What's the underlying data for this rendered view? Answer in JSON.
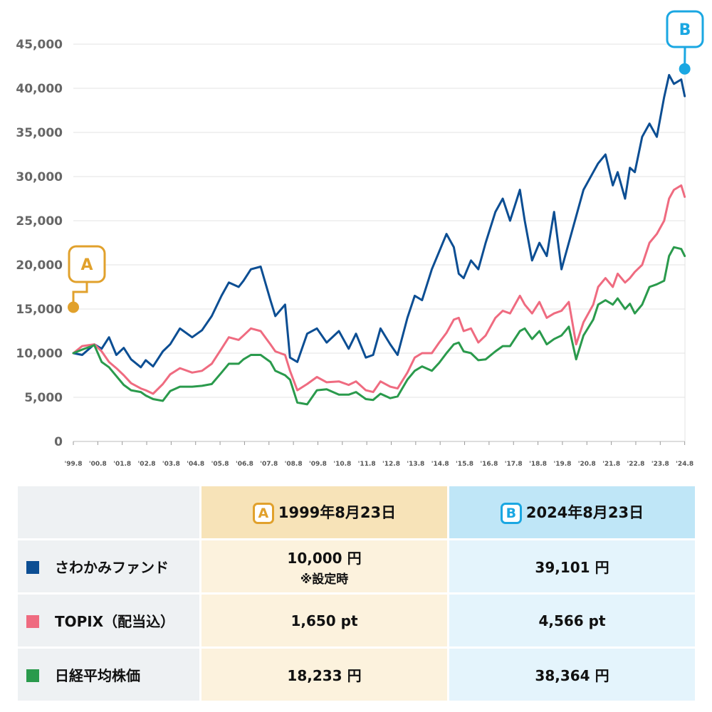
{
  "chart_data": {
    "type": "line",
    "ylim": [
      0,
      45000
    ],
    "yticks": [
      "0",
      "5,000",
      "10,000",
      "15,000",
      "20,000",
      "25,000",
      "30,000",
      "35,000",
      "40,000",
      "45,000"
    ],
    "ytick_values": [
      0,
      5000,
      10000,
      15000,
      20000,
      25000,
      30000,
      35000,
      40000,
      45000
    ],
    "xlim": [
      1999.64,
      2024.65
    ],
    "xticks": [
      "'99.8",
      "'00.8",
      "'01.8",
      "'02.8",
      "'03.8",
      "'04.8",
      "'05.8",
      "'06.8",
      "'07.8",
      "'08.8",
      "'09.8",
      "'10.8",
      "'11.8",
      "'12.8",
      "'13.8",
      "'14.8",
      "'15.8",
      "'16.8",
      "'17.8",
      "'18.8",
      "'19.8",
      "'20.8",
      "'21.8",
      "'22.8",
      "'23.8",
      "'24.8"
    ],
    "xtick_values": [
      1999.64,
      2000.64,
      2001.64,
      2002.64,
      2003.64,
      2004.64,
      2005.64,
      2006.64,
      2007.64,
      2008.64,
      2009.64,
      2010.64,
      2011.64,
      2012.64,
      2013.64,
      2014.64,
      2015.64,
      2016.64,
      2017.64,
      2018.64,
      2019.64,
      2020.64,
      2021.64,
      2022.64,
      2023.64,
      2024.64
    ],
    "grid": true,
    "series": [
      {
        "name": "さわかみファンド",
        "color": "#0c4e93",
        "x": [
          1999.64,
          2000.0,
          2000.5,
          2000.8,
          2001.1,
          2001.4,
          2001.7,
          2002.0,
          2002.4,
          2002.6,
          2002.9,
          2003.3,
          2003.6,
          2004.0,
          2004.5,
          2004.9,
          2005.3,
          2005.7,
          2006.0,
          2006.4,
          2006.6,
          2006.9,
          2007.3,
          2007.7,
          2007.9,
          2008.3,
          2008.5,
          2008.8,
          2009.2,
          2009.6,
          2010.0,
          2010.5,
          2010.9,
          2011.2,
          2011.6,
          2011.9,
          2012.2,
          2012.6,
          2012.9,
          2013.3,
          2013.6,
          2013.9,
          2014.3,
          2014.6,
          2014.9,
          2015.2,
          2015.4,
          2015.6,
          2015.9,
          2016.2,
          2016.5,
          2016.9,
          2017.2,
          2017.5,
          2017.9,
          2018.1,
          2018.4,
          2018.7,
          2019.0,
          2019.3,
          2019.6,
          2019.9,
          2020.2,
          2020.5,
          2020.9,
          2021.1,
          2021.4,
          2021.7,
          2021.9,
          2022.2,
          2022.4,
          2022.6,
          2022.9,
          2023.2,
          2023.5,
          2023.8,
          2024.0,
          2024.2,
          2024.5,
          2024.64
        ],
        "values": [
          10000,
          9800,
          11000,
          10500,
          11800,
          9800,
          10600,
          9300,
          8400,
          9200,
          8500,
          10200,
          11000,
          12800,
          11800,
          12600,
          14200,
          16500,
          18000,
          17500,
          18200,
          19500,
          19800,
          16000,
          14200,
          15500,
          9500,
          9000,
          12200,
          12800,
          11200,
          12500,
          10500,
          12200,
          9500,
          9800,
          12800,
          11000,
          9800,
          14000,
          16500,
          16000,
          19500,
          21500,
          23500,
          22000,
          19000,
          18500,
          20500,
          19500,
          22500,
          26000,
          27500,
          25000,
          28500,
          25000,
          20500,
          22500,
          21000,
          26000,
          19500,
          22500,
          25500,
          28500,
          30500,
          31500,
          32500,
          29000,
          30500,
          27500,
          31000,
          30500,
          34500,
          36000,
          34500,
          39000,
          41500,
          40500,
          41000,
          39101
        ]
      },
      {
        "name": "TOPIX(配当込)",
        "color": "#ef6b80",
        "x": [
          1999.64,
          2000.0,
          2000.5,
          2000.8,
          2001.1,
          2001.4,
          2001.7,
          2002.0,
          2002.4,
          2002.6,
          2002.9,
          2003.3,
          2003.6,
          2004.0,
          2004.5,
          2004.9,
          2005.3,
          2005.7,
          2006.0,
          2006.4,
          2006.6,
          2006.9,
          2007.3,
          2007.7,
          2007.9,
          2008.3,
          2008.5,
          2008.8,
          2009.2,
          2009.6,
          2010.0,
          2010.5,
          2010.9,
          2011.2,
          2011.6,
          2011.9,
          2012.2,
          2012.6,
          2012.9,
          2013.3,
          2013.6,
          2013.9,
          2014.3,
          2014.6,
          2014.9,
          2015.2,
          2015.4,
          2015.6,
          2015.9,
          2016.2,
          2016.5,
          2016.9,
          2017.2,
          2017.5,
          2017.9,
          2018.1,
          2018.4,
          2018.7,
          2019.0,
          2019.3,
          2019.6,
          2019.9,
          2020.2,
          2020.5,
          2020.9,
          2021.1,
          2021.4,
          2021.7,
          2021.9,
          2022.2,
          2022.4,
          2022.6,
          2022.9,
          2023.2,
          2023.5,
          2023.8,
          2024.0,
          2024.2,
          2024.5,
          2024.64
        ],
        "values": [
          10000,
          10800,
          11000,
          10200,
          9000,
          8300,
          7500,
          6600,
          6000,
          5800,
          5400,
          6500,
          7600,
          8300,
          7800,
          8000,
          8800,
          10500,
          11800,
          11500,
          12000,
          12800,
          12500,
          11000,
          10200,
          9800,
          8000,
          5800,
          6500,
          7300,
          6700,
          6800,
          6400,
          6800,
          5800,
          5600,
          6800,
          6200,
          6000,
          7800,
          9500,
          10000,
          10000,
          11200,
          12300,
          13800,
          14000,
          12500,
          12800,
          11200,
          12000,
          14000,
          14800,
          14500,
          16500,
          15500,
          14500,
          15800,
          14000,
          14500,
          14800,
          15800,
          11000,
          13500,
          15500,
          17500,
          18500,
          17500,
          19000,
          18000,
          18500,
          19200,
          20000,
          22500,
          23500,
          25000,
          27500,
          28500,
          29000,
          27700
        ]
      },
      {
        "name": "日経平均株価",
        "color": "#2a9a4c",
        "x": [
          1999.64,
          2000.0,
          2000.5,
          2000.8,
          2001.1,
          2001.4,
          2001.7,
          2002.0,
          2002.4,
          2002.6,
          2002.9,
          2003.3,
          2003.6,
          2004.0,
          2004.5,
          2004.9,
          2005.3,
          2005.7,
          2006.0,
          2006.4,
          2006.6,
          2006.9,
          2007.3,
          2007.7,
          2007.9,
          2008.3,
          2008.5,
          2008.8,
          2009.2,
          2009.6,
          2010.0,
          2010.5,
          2010.9,
          2011.2,
          2011.6,
          2011.9,
          2012.2,
          2012.6,
          2012.9,
          2013.3,
          2013.6,
          2013.9,
          2014.3,
          2014.6,
          2014.9,
          2015.2,
          2015.4,
          2015.6,
          2015.9,
          2016.2,
          2016.5,
          2016.9,
          2017.2,
          2017.5,
          2017.9,
          2018.1,
          2018.4,
          2018.7,
          2019.0,
          2019.3,
          2019.6,
          2019.9,
          2020.2,
          2020.5,
          2020.9,
          2021.1,
          2021.4,
          2021.7,
          2021.9,
          2022.2,
          2022.4,
          2022.6,
          2022.9,
          2023.2,
          2023.5,
          2023.8,
          2024.0,
          2024.2,
          2024.5,
          2024.64
        ],
        "values": [
          10000,
          10400,
          10900,
          9000,
          8400,
          7400,
          6400,
          5800,
          5600,
          5200,
          4800,
          4600,
          5700,
          6200,
          6200,
          6300,
          6500,
          7800,
          8800,
          8800,
          9300,
          9800,
          9800,
          9000,
          8000,
          7500,
          7000,
          4400,
          4200,
          5800,
          5900,
          5300,
          5300,
          5600,
          4800,
          4700,
          5400,
          4900,
          5100,
          7000,
          8000,
          8500,
          8000,
          8900,
          10000,
          11000,
          11200,
          10200,
          10000,
          9200,
          9300,
          10200,
          10800,
          10800,
          12500,
          12800,
          11600,
          12500,
          11000,
          11600,
          12000,
          13000,
          9300,
          12000,
          13800,
          15500,
          16000,
          15500,
          16200,
          15000,
          15600,
          14500,
          15500,
          17500,
          17800,
          18200,
          21000,
          22000,
          21800,
          21000
        ]
      }
    ],
    "markers": [
      {
        "label": "A",
        "x": 1999.64,
        "value": 15200,
        "color": "#e1a12c"
      },
      {
        "label": "B",
        "x": 2024.64,
        "value": 42200,
        "color": "#1aa7e2"
      }
    ]
  },
  "table": {
    "col_a": {
      "badge": "A",
      "date": "1999年8月23日"
    },
    "col_b": {
      "badge": "B",
      "date": "2024年8月23日"
    },
    "rows": [
      {
        "name": "さわかみファンド",
        "color": "#0c4e93",
        "a": "10,000 円",
        "a_note": "※設定時",
        "b": "39,101 円"
      },
      {
        "name": "TOPIX（配当込）",
        "color": "#ef6b80",
        "a": "1,650 pt",
        "b": "4,566 pt"
      },
      {
        "name": "日経平均株価",
        "color": "#2a9a4c",
        "a": "18,233 円",
        "b": "38,364 円"
      }
    ]
  }
}
